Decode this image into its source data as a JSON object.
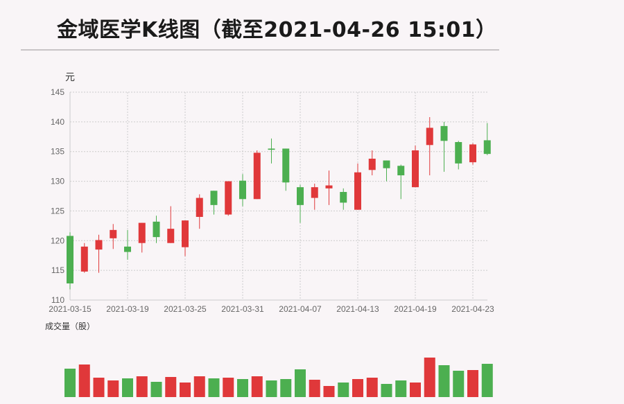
{
  "page": {
    "title": "金域医学K线图（截至2021-04-26 15:01）"
  },
  "colors": {
    "up": "#e0383a",
    "down": "#4caf50",
    "grid": "#cccccc",
    "axis": "#cccccc"
  },
  "chart_data": {
    "type": "candlestick",
    "price_unit": "元",
    "volume_label": "成交量（股）",
    "ylim": [
      110,
      145
    ],
    "yticks": [
      110,
      115,
      120,
      125,
      130,
      135,
      140,
      145
    ],
    "xticks": [
      "2021-03-15",
      "2021-03-19",
      "2021-03-25",
      "2021-03-31",
      "2021-04-07",
      "2021-04-13",
      "2021-04-19",
      "2021-04-23"
    ],
    "grid": true,
    "candles": [
      {
        "date": "2021-03-15",
        "open": 120.8,
        "close": 112.8,
        "high": 121.4,
        "low": 111.8
      },
      {
        "date": "2021-03-16",
        "open": 114.8,
        "close": 119.0,
        "high": 119.6,
        "low": 114.6
      },
      {
        "date": "2021-03-17",
        "open": 118.5,
        "close": 120.1,
        "high": 121.0,
        "low": 114.6
      },
      {
        "date": "2021-03-18",
        "open": 120.4,
        "close": 121.8,
        "high": 122.8,
        "low": 118.6
      },
      {
        "date": "2021-03-19",
        "open": 119.0,
        "close": 118.1,
        "high": 121.8,
        "low": 116.8
      },
      {
        "date": "2021-03-22",
        "open": 119.6,
        "close": 123.0,
        "high": 123.0,
        "low": 118.0
      },
      {
        "date": "2021-03-23",
        "open": 123.2,
        "close": 120.6,
        "high": 124.2,
        "low": 119.6
      },
      {
        "date": "2021-03-24",
        "open": 119.6,
        "close": 122.0,
        "high": 125.8,
        "low": 119.6
      },
      {
        "date": "2021-03-25",
        "open": 118.9,
        "close": 123.4,
        "high": 123.4,
        "low": 117.4
      },
      {
        "date": "2021-03-26",
        "open": 124.0,
        "close": 127.2,
        "high": 127.8,
        "low": 122.0
      },
      {
        "date": "2021-03-29",
        "open": 128.4,
        "close": 126.0,
        "high": 128.4,
        "low": 124.4
      },
      {
        "date": "2021-03-30",
        "open": 124.4,
        "close": 130.0,
        "high": 130.0,
        "low": 124.2
      },
      {
        "date": "2021-03-31",
        "open": 130.1,
        "close": 127.0,
        "high": 131.2,
        "low": 125.8
      },
      {
        "date": "2021-04-01",
        "open": 127.0,
        "close": 134.8,
        "high": 135.2,
        "low": 127.0
      },
      {
        "date": "2021-04-02",
        "open": 135.5,
        "close": 135.3,
        "high": 137.2,
        "low": 133.0
      },
      {
        "date": "2021-04-06",
        "open": 135.5,
        "close": 129.8,
        "high": 135.5,
        "low": 128.4
      },
      {
        "date": "2021-04-07",
        "open": 129.0,
        "close": 126.0,
        "high": 129.4,
        "low": 123.0
      },
      {
        "date": "2021-04-08",
        "open": 127.2,
        "close": 129.0,
        "high": 129.6,
        "low": 125.2
      },
      {
        "date": "2021-04-09",
        "open": 128.8,
        "close": 129.3,
        "high": 131.8,
        "low": 126.0
      },
      {
        "date": "2021-04-12",
        "open": 128.2,
        "close": 126.4,
        "high": 128.8,
        "low": 125.2
      },
      {
        "date": "2021-04-13",
        "open": 125.2,
        "close": 131.5,
        "high": 133.0,
        "low": 125.2
      },
      {
        "date": "2021-04-14",
        "open": 131.9,
        "close": 133.8,
        "high": 135.2,
        "low": 131.0
      },
      {
        "date": "2021-04-15",
        "open": 133.5,
        "close": 132.2,
        "high": 133.5,
        "low": 130.0
      },
      {
        "date": "2021-04-16",
        "open": 132.6,
        "close": 131.0,
        "high": 132.8,
        "low": 127.0
      },
      {
        "date": "2021-04-19",
        "open": 129.0,
        "close": 135.2,
        "high": 136.0,
        "low": 129.0
      },
      {
        "date": "2021-04-20",
        "open": 136.1,
        "close": 139.0,
        "high": 140.8,
        "low": 131.0
      },
      {
        "date": "2021-04-21",
        "open": 139.3,
        "close": 136.8,
        "high": 140.0,
        "low": 131.6
      },
      {
        "date": "2021-04-22",
        "open": 136.6,
        "close": 133.0,
        "high": 136.8,
        "low": 132.0
      },
      {
        "date": "2021-04-23",
        "open": 133.2,
        "close": 136.2,
        "high": 136.4,
        "low": 132.8
      },
      {
        "date": "2021-04-26",
        "open": 136.9,
        "close": 134.6,
        "high": 139.8,
        "low": 134.4
      }
    ],
    "volume": [
      {
        "date": "2021-03-15",
        "value": 41
      },
      {
        "date": "2021-03-16",
        "value": 47
      },
      {
        "date": "2021-03-17",
        "value": 28
      },
      {
        "date": "2021-03-18",
        "value": 24
      },
      {
        "date": "2021-03-19",
        "value": 27
      },
      {
        "date": "2021-03-22",
        "value": 30
      },
      {
        "date": "2021-03-23",
        "value": 22
      },
      {
        "date": "2021-03-24",
        "value": 29
      },
      {
        "date": "2021-03-25",
        "value": 21
      },
      {
        "date": "2021-03-26",
        "value": 30
      },
      {
        "date": "2021-03-29",
        "value": 27
      },
      {
        "date": "2021-03-30",
        "value": 28
      },
      {
        "date": "2021-03-31",
        "value": 26
      },
      {
        "date": "2021-04-01",
        "value": 30
      },
      {
        "date": "2021-04-02",
        "value": 24
      },
      {
        "date": "2021-04-06",
        "value": 26
      },
      {
        "date": "2021-04-07",
        "value": 40
      },
      {
        "date": "2021-04-08",
        "value": 25
      },
      {
        "date": "2021-04-09",
        "value": 16
      },
      {
        "date": "2021-04-12",
        "value": 21
      },
      {
        "date": "2021-04-13",
        "value": 26
      },
      {
        "date": "2021-04-14",
        "value": 28
      },
      {
        "date": "2021-04-15",
        "value": 19
      },
      {
        "date": "2021-04-16",
        "value": 24
      },
      {
        "date": "2021-04-19",
        "value": 21
      },
      {
        "date": "2021-04-20",
        "value": 57
      },
      {
        "date": "2021-04-21",
        "value": 46
      },
      {
        "date": "2021-04-22",
        "value": 38
      },
      {
        "date": "2021-04-23",
        "value": 39
      },
      {
        "date": "2021-04-26",
        "value": 48
      }
    ]
  }
}
